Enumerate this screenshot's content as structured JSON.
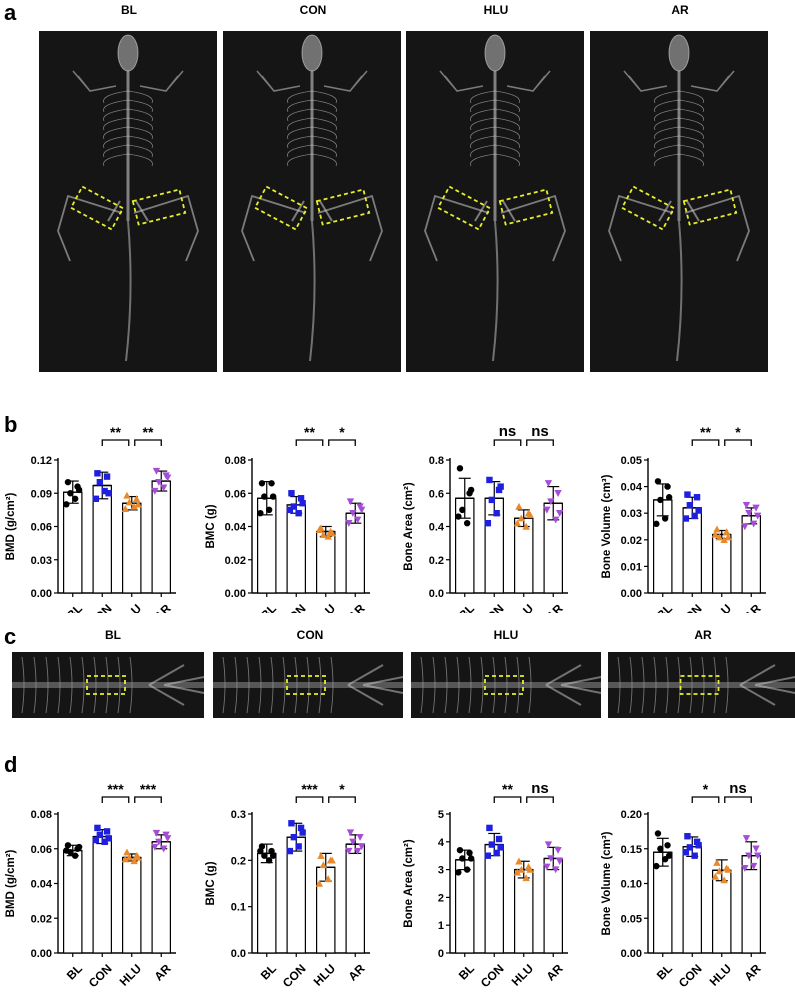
{
  "panels": {
    "a": {
      "letter": "a",
      "labels": [
        "BL",
        "CON",
        "HLU",
        "AR"
      ]
    },
    "b": {
      "letter": "b"
    },
    "c": {
      "letter": "c",
      "labels": [
        "BL",
        "CON",
        "HLU",
        "AR"
      ]
    },
    "d": {
      "letter": "d"
    }
  },
  "colors": {
    "BL": "#000000",
    "CON": "#1f1fe0",
    "HLU": "#e88a2b",
    "AR": "#a64dd8",
    "roi": "#e6ef2a",
    "xray_bg": "#151515"
  },
  "chart_data": [
    {
      "id": "b1",
      "type": "bar",
      "categories": [
        "BL",
        "CON",
        "HLU",
        "AR"
      ],
      "values": [
        0.091,
        0.097,
        0.081,
        0.101
      ],
      "sd": [
        0.01,
        0.012,
        0.006,
        0.009
      ],
      "points": [
        [
          0.1,
          0.096,
          0.09,
          0.085,
          0.08,
          0.093
        ],
        [
          0.108,
          0.105,
          0.1,
          0.092,
          0.085,
          0.09
        ],
        [
          0.088,
          0.085,
          0.082,
          0.078,
          0.076,
          0.08
        ],
        [
          0.11,
          0.106,
          0.1,
          0.095,
          0.092,
          0.104
        ]
      ],
      "ylabel": "BMD (g/cm²)",
      "ylim": [
        0,
        0.12
      ],
      "yticks": [
        "0.00",
        "0.03",
        "0.06",
        "0.09",
        "0.12"
      ],
      "brackets": [
        {
          "from": 1,
          "to": 2,
          "label": "**"
        },
        {
          "from": 2,
          "to": 3,
          "label": "**"
        }
      ]
    },
    {
      "id": "b2",
      "type": "bar",
      "categories": [
        "BL",
        "CON",
        "HLU",
        "AR"
      ],
      "values": [
        0.057,
        0.053,
        0.037,
        0.048
      ],
      "sd": [
        0.01,
        0.005,
        0.003,
        0.006
      ],
      "points": [
        [
          0.066,
          0.066,
          0.058,
          0.05,
          0.048,
          0.058
        ],
        [
          0.06,
          0.057,
          0.052,
          0.048,
          0.05,
          0.054
        ],
        [
          0.039,
          0.037,
          0.035,
          0.034,
          0.038,
          0.036
        ],
        [
          0.055,
          0.052,
          0.048,
          0.044,
          0.042,
          0.05
        ]
      ],
      "ylabel": "BMC (g)",
      "ylim": [
        0,
        0.08
      ],
      "yticks": [
        "0.00",
        "0.02",
        "0.04",
        "0.06",
        "0.08"
      ],
      "brackets": [
        {
          "from": 1,
          "to": 2,
          "label": "**"
        },
        {
          "from": 2,
          "to": 3,
          "label": "*"
        }
      ]
    },
    {
      "id": "b3",
      "type": "bar",
      "categories": [
        "BL",
        "CON",
        "HLU",
        "AR"
      ],
      "values": [
        0.57,
        0.57,
        0.45,
        0.54
      ],
      "sd": [
        0.12,
        0.1,
        0.05,
        0.1
      ],
      "points": [
        [
          0.75,
          0.6,
          0.5,
          0.42,
          0.46,
          0.62
        ],
        [
          0.68,
          0.62,
          0.56,
          0.48,
          0.42,
          0.64
        ],
        [
          0.52,
          0.48,
          0.45,
          0.4,
          0.42,
          0.47
        ],
        [
          0.66,
          0.6,
          0.55,
          0.44,
          0.5,
          0.48
        ]
      ],
      "ylabel": "Bone Area (cm²)",
      "ylim": [
        0,
        0.8
      ],
      "yticks": [
        "0.0",
        "0.2",
        "0.4",
        "0.6",
        "0.8"
      ],
      "brackets": [
        {
          "from": 1,
          "to": 2,
          "label": "ns"
        },
        {
          "from": 2,
          "to": 3,
          "label": "ns"
        }
      ]
    },
    {
      "id": "b4",
      "type": "bar",
      "categories": [
        "BL",
        "CON",
        "HLU",
        "AR"
      ],
      "values": [
        0.035,
        0.032,
        0.022,
        0.029
      ],
      "sd": [
        0.006,
        0.004,
        0.0015,
        0.003
      ],
      "points": [
        [
          0.042,
          0.04,
          0.035,
          0.028,
          0.026,
          0.036
        ],
        [
          0.037,
          0.036,
          0.033,
          0.029,
          0.028,
          0.031
        ],
        [
          0.024,
          0.023,
          0.021,
          0.02,
          0.022,
          0.021
        ],
        [
          0.033,
          0.032,
          0.03,
          0.026,
          0.025,
          0.029
        ]
      ],
      "ylabel": "Bone Volume (cm³)",
      "ylim": [
        0,
        0.05
      ],
      "yticks": [
        "0.00",
        "0.01",
        "0.02",
        "0.03",
        "0.04",
        "0.05"
      ],
      "brackets": [
        {
          "from": 1,
          "to": 2,
          "label": "**"
        },
        {
          "from": 2,
          "to": 3,
          "label": "*"
        }
      ]
    },
    {
      "id": "d1",
      "type": "bar",
      "categories": [
        "BL",
        "CON",
        "HLU",
        "AR"
      ],
      "values": [
        0.059,
        0.067,
        0.055,
        0.064
      ],
      "sd": [
        0.003,
        0.004,
        0.002,
        0.004
      ],
      "points": [
        [
          0.062,
          0.06,
          0.058,
          0.056,
          0.059,
          0.061
        ],
        [
          0.072,
          0.07,
          0.068,
          0.064,
          0.065,
          0.066
        ],
        [
          0.058,
          0.056,
          0.055,
          0.053,
          0.054,
          0.055
        ],
        [
          0.069,
          0.068,
          0.064,
          0.06,
          0.061,
          0.066
        ]
      ],
      "ylabel": "BMD (g/cm²)",
      "ylim": [
        0,
        0.08
      ],
      "yticks": [
        "0.00",
        "0.02",
        "0.04",
        "0.06",
        "0.08"
      ],
      "brackets": [
        {
          "from": 1,
          "to": 2,
          "label": "***"
        },
        {
          "from": 2,
          "to": 3,
          "label": "***"
        }
      ]
    },
    {
      "id": "d2",
      "type": "bar",
      "categories": [
        "BL",
        "CON",
        "HLU",
        "AR"
      ],
      "values": [
        0.215,
        0.25,
        0.185,
        0.235
      ],
      "sd": [
        0.02,
        0.03,
        0.03,
        0.02
      ],
      "points": [
        [
          0.23,
          0.22,
          0.21,
          0.2,
          0.22,
          0.21
        ],
        [
          0.28,
          0.27,
          0.25,
          0.23,
          0.22,
          0.26
        ],
        [
          0.21,
          0.2,
          0.19,
          0.16,
          0.15,
          0.2
        ],
        [
          0.26,
          0.25,
          0.24,
          0.22,
          0.22,
          0.23
        ]
      ],
      "ylabel": "BMC (g)",
      "ylim": [
        0,
        0.3
      ],
      "yticks": [
        "0.0",
        "0.1",
        "0.2",
        "0.3"
      ],
      "brackets": [
        {
          "from": 1,
          "to": 2,
          "label": "***"
        },
        {
          "from": 2,
          "to": 3,
          "label": "*"
        }
      ]
    },
    {
      "id": "d3",
      "type": "bar",
      "categories": [
        "BL",
        "CON",
        "HLU",
        "AR"
      ],
      "values": [
        3.35,
        3.9,
        3.0,
        3.4
      ],
      "sd": [
        0.35,
        0.4,
        0.3,
        0.4
      ],
      "points": [
        [
          3.7,
          3.6,
          3.4,
          3.0,
          2.9,
          3.4
        ],
        [
          4.5,
          4.1,
          3.9,
          3.6,
          3.5,
          3.8
        ],
        [
          3.3,
          3.1,
          3.0,
          2.7,
          2.9,
          3.0
        ],
        [
          3.9,
          3.7,
          3.4,
          3.0,
          3.1,
          3.3
        ]
      ],
      "ylabel": "Bone Area (cm²)",
      "ylim": [
        0,
        5
      ],
      "yticks": [
        "0",
        "1",
        "2",
        "3",
        "4",
        "5"
      ],
      "brackets": [
        {
          "from": 1,
          "to": 2,
          "label": "**"
        },
        {
          "from": 2,
          "to": 3,
          "label": "ns"
        }
      ]
    },
    {
      "id": "d4",
      "type": "bar",
      "categories": [
        "BL",
        "CON",
        "HLU",
        "AR"
      ],
      "values": [
        0.145,
        0.153,
        0.119,
        0.14
      ],
      "sd": [
        0.02,
        0.014,
        0.015,
        0.02
      ],
      "points": [
        [
          0.172,
          0.155,
          0.15,
          0.135,
          0.125,
          0.14
        ],
        [
          0.168,
          0.16,
          0.152,
          0.14,
          0.145,
          0.155
        ],
        [
          0.13,
          0.122,
          0.118,
          0.105,
          0.11,
          0.12
        ],
        [
          0.165,
          0.15,
          0.14,
          0.125,
          0.122,
          0.14
        ]
      ],
      "ylabel": "Bone Volume (cm³)",
      "ylim": [
        0,
        0.2
      ],
      "yticks": [
        "0.00",
        "0.05",
        "0.10",
        "0.15",
        "0.20"
      ],
      "brackets": [
        {
          "from": 1,
          "to": 2,
          "label": "*"
        },
        {
          "from": 2,
          "to": 3,
          "label": "ns"
        }
      ]
    }
  ]
}
